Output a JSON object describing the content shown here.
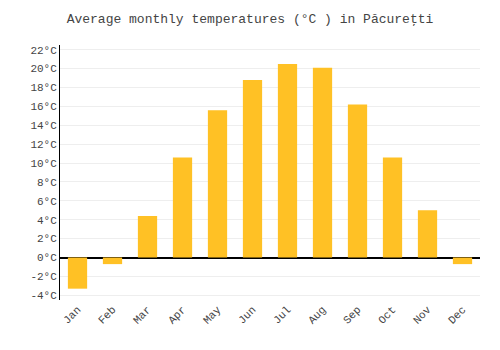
{
  "chart_data": {
    "type": "bar",
    "title": "Average monthly temperatures (°C ) in Păcureţti",
    "categories": [
      "Jan",
      "Feb",
      "Mar",
      "Apr",
      "May",
      "Jun",
      "Jul",
      "Aug",
      "Sep",
      "Oct",
      "Nov",
      "Dec"
    ],
    "values": [
      -3.3,
      -0.7,
      4.4,
      10.6,
      15.6,
      18.8,
      20.5,
      20.1,
      16.2,
      10.6,
      5.0,
      -0.7
    ],
    "color": "#FFC125",
    "ylim": [
      -4.5,
      22.5
    ],
    "yticks": [
      {
        "value": -4,
        "label": "-4°C"
      },
      {
        "value": -2,
        "label": "-2°C"
      },
      {
        "value": 0,
        "label": "0°C"
      },
      {
        "value": 2,
        "label": "2°C"
      },
      {
        "value": 4,
        "label": "4°C"
      },
      {
        "value": 6,
        "label": "6°C"
      },
      {
        "value": 8,
        "label": "8°C"
      },
      {
        "value": 10,
        "label": "10°C"
      },
      {
        "value": 12,
        "label": "12°C"
      },
      {
        "value": 14,
        "label": "14°C"
      },
      {
        "value": 16,
        "label": "16°C"
      },
      {
        "value": 18,
        "label": "18°C"
      },
      {
        "value": 20,
        "label": "20°C"
      },
      {
        "value": 22,
        "label": "22°C"
      }
    ],
    "grid": true
  }
}
